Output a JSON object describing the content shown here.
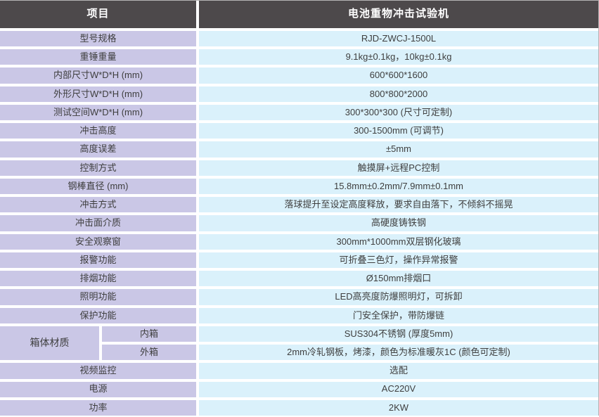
{
  "colors": {
    "header_bg": "#4d494b",
    "header_text": "#ffffff",
    "label_bg": "#cac7e6",
    "value_bg": "#daf1fb",
    "body_text": "#3e3e3e",
    "gap": "#ffffff"
  },
  "header": {
    "items_label": "项目",
    "machine_name": "电池重物冲击试验机"
  },
  "rows": [
    {
      "label": "型号规格",
      "value": "RJD-ZWCJ-1500L"
    },
    {
      "label": "重锤重量",
      "value": "9.1kg±0.1kg，10kg±0.1kg"
    },
    {
      "label": "内部尺寸W*D*H (mm)",
      "value": "600*600*1600"
    },
    {
      "label": "外形尺寸W*D*H (mm)",
      "value": "800*800*2000"
    },
    {
      "label": "测试空间W*D*H (mm)",
      "value": "300*300*300 (尺寸可定制)"
    },
    {
      "label": "冲击高度",
      "value": "300-1500mm (可调节)"
    },
    {
      "label": "高度误差",
      "value": "±5mm"
    },
    {
      "label": "控制方式",
      "value": "触摸屏+远程PC控制"
    },
    {
      "label": "钢棒直径 (mm)",
      "value": "15.8mm±0.2mm/7.9mm±0.1mm"
    },
    {
      "label": "冲击方式",
      "value": "落球提升至设定高度释放，要求自由落下，不倾斜不摇晃"
    },
    {
      "label": "冲击面介质",
      "value": "高硬度铸铁钢"
    },
    {
      "label": "安全观察窗",
      "value": "300mm*1000mm双层钢化玻璃"
    },
    {
      "label": "报警功能",
      "value": "可折叠三色灯，操作异常报警"
    },
    {
      "label": "排烟功能",
      "value": "Ø150mm排烟口"
    },
    {
      "label": "照明功能",
      "value": "LED高亮度防爆照明灯，可拆卸"
    },
    {
      "label": "保护功能",
      "value": "门安全保护，带防爆链"
    }
  ],
  "box_material": {
    "label": "箱体材质",
    "sub_rows": [
      {
        "label": "内箱",
        "value": "SUS304不锈钢 (厚度5mm)"
      },
      {
        "label": "外箱",
        "value": "2mm冷轧钢板，烤漆，颜色为标准暖灰1C (颜色可定制)"
      }
    ]
  },
  "rows_bottom": [
    {
      "label": "视频监控",
      "value": "选配"
    },
    {
      "label": "电源",
      "value": "AC220V"
    },
    {
      "label": "功率",
      "value": "2KW"
    }
  ]
}
